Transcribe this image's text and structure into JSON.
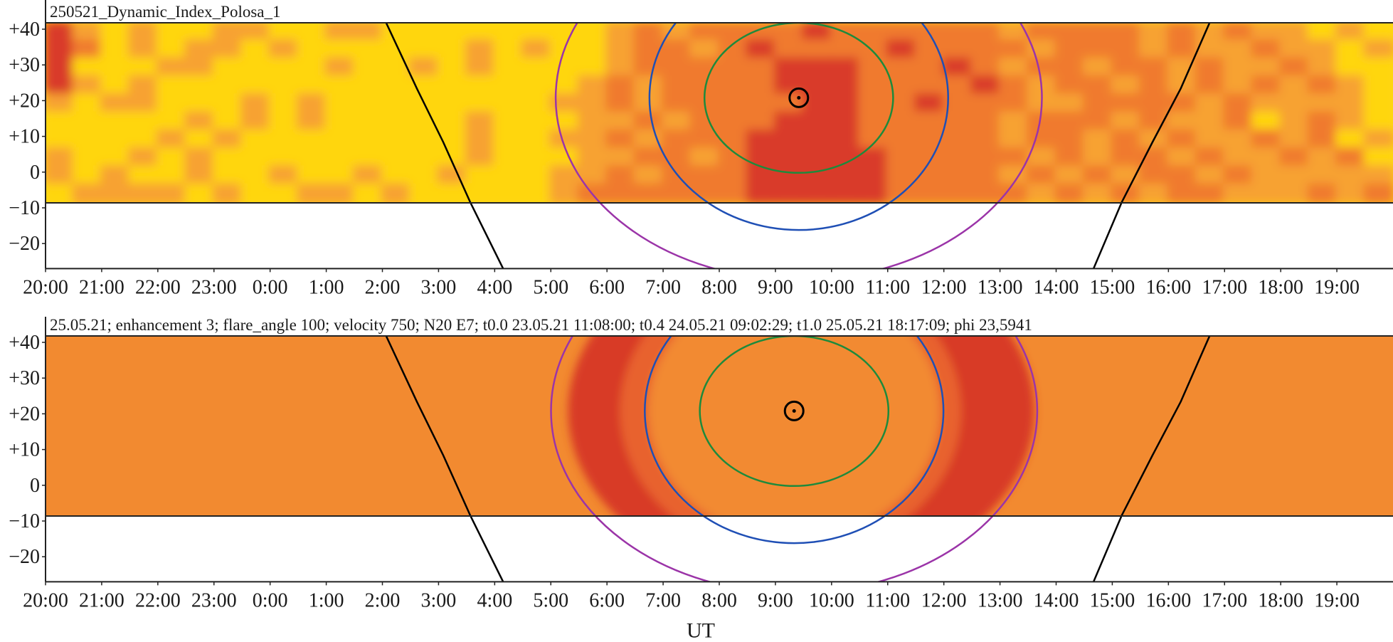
{
  "chart_data": [
    {
      "type": "heatmap",
      "title": "250521_Dynamic_Index_Polosa_1",
      "xlabel": "",
      "x_tick_labels": [
        "20:00",
        "21:00",
        "22:00",
        "23:00",
        "0:00",
        "1:00",
        "2:00",
        "3:00",
        "4:00",
        "5:00",
        "6:00",
        "7:00",
        "8:00",
        "9:00",
        "10:00",
        "11:00",
        "12:00",
        "13:00",
        "14:00",
        "15:00",
        "16:00",
        "17:00",
        "18:00",
        "19:00"
      ],
      "xlim": [
        "20:00",
        "20:00"
      ],
      "y_tick_labels": [
        "+40",
        "+30",
        "+20",
        "+10",
        "0",
        "−10",
        "−20"
      ],
      "y_ticks": [
        40,
        30,
        20,
        10,
        0,
        -10,
        -20
      ],
      "ylim": [
        -27,
        41.8
      ],
      "band_deg": [
        -8.6,
        41.8
      ],
      "cell_minutes": 30,
      "level_colors": [
        "#FFD60F",
        "#F7A230",
        "#F07A2E",
        "#D93A2A"
      ],
      "rows": [
        "310100110011000000001212222322222212222121211010",
        "320101101000000101001221232222322221222121121101",
        "300011000010010100001222223332223212212212112100",
        "310100000000000000012122223332222321221212121210",
        "101100010100000000112122222332232221122221211110",
        "000001010100000100011212223332222212221211201210",
        "000010100000000100112122233332222212212121121201",
        "100101000000000100011221233333222221212212112120",
        "101001001001001000112122233333222212121221211111",
        "011110100110100000122222233333222221212122111212"
      ],
      "source": {
        "time": "09:25",
        "lat": 20.8
      },
      "ellipses": [
        {
          "color": "#1E8A3C",
          "rx_hours": 1.68,
          "ry_deg": 21
        },
        {
          "color": "#1F4FB5",
          "rx_hours": 2.66,
          "ry_deg": 37
        },
        {
          "color": "#9B34A8",
          "rx_hours": 4.33,
          "ry_deg": 51
        }
      ],
      "curves": [
        {
          "color": "#000000",
          "points": [
            [
              "02:04",
              41.8
            ],
            [
              "02:37",
              23.3
            ],
            [
              "03:05",
              8.4
            ],
            [
              "03:34",
              -8.5
            ],
            [
              "04:09",
              -27
            ]
          ]
        },
        {
          "color": "#000000",
          "points": [
            [
              "16:44",
              41.8
            ],
            [
              "16:13",
              23.3
            ],
            [
              "15:43",
              8.4
            ],
            [
              "15:10",
              -8.5
            ],
            [
              "14:40",
              -27
            ]
          ]
        }
      ]
    },
    {
      "type": "heatmap",
      "title": "25.05.21; enhancement 3; flare_angle 100; velocity 750; N20 E7; t0.0 23.05.21 11:08:00; t0.4 24.05.21 09:02:29; t1.0 25.05.21 18:17:09; phi 23,5941",
      "xlabel": "UT",
      "x_tick_labels": [
        "20:00",
        "21:00",
        "22:00",
        "23:00",
        "0:00",
        "1:00",
        "2:00",
        "3:00",
        "4:00",
        "5:00",
        "6:00",
        "7:00",
        "8:00",
        "9:00",
        "10:00",
        "11:00",
        "12:00",
        "13:00",
        "14:00",
        "15:00",
        "16:00",
        "17:00",
        "18:00",
        "19:00"
      ],
      "xlim": [
        "20:00",
        "20:00"
      ],
      "y_tick_labels": [
        "+40",
        "+30",
        "+20",
        "+10",
        "0",
        "−10",
        "−20"
      ],
      "y_ticks": [
        40,
        30,
        20,
        10,
        0,
        -10,
        -20
      ],
      "ylim": [
        -27,
        41.8
      ],
      "band_deg": [
        -8.6,
        41.8
      ],
      "background_color": "#F28A30",
      "ring_color": "#D83A28",
      "source": {
        "time": "09:20",
        "lat": 20.8
      },
      "ellipses": [
        {
          "color": "#1E8A3C",
          "rx_hours": 1.68,
          "ry_deg": 21
        },
        {
          "color": "#1F4FB5",
          "rx_hours": 2.66,
          "ry_deg": 37
        },
        {
          "color": "#9B34A8",
          "rx_hours": 4.33,
          "ry_deg": 51
        }
      ],
      "curves": [
        {
          "color": "#000000",
          "points": [
            [
              "02:04",
              41.8
            ],
            [
              "02:37",
              23.3
            ],
            [
              "03:05",
              8.4
            ],
            [
              "03:34",
              -8.5
            ],
            [
              "04:09",
              -27
            ]
          ]
        },
        {
          "color": "#000000",
          "points": [
            [
              "16:44",
              41.8
            ],
            [
              "16:13",
              23.3
            ],
            [
              "15:43",
              8.4
            ],
            [
              "15:10",
              -8.5
            ],
            [
              "14:40",
              -27
            ]
          ]
        }
      ]
    }
  ]
}
